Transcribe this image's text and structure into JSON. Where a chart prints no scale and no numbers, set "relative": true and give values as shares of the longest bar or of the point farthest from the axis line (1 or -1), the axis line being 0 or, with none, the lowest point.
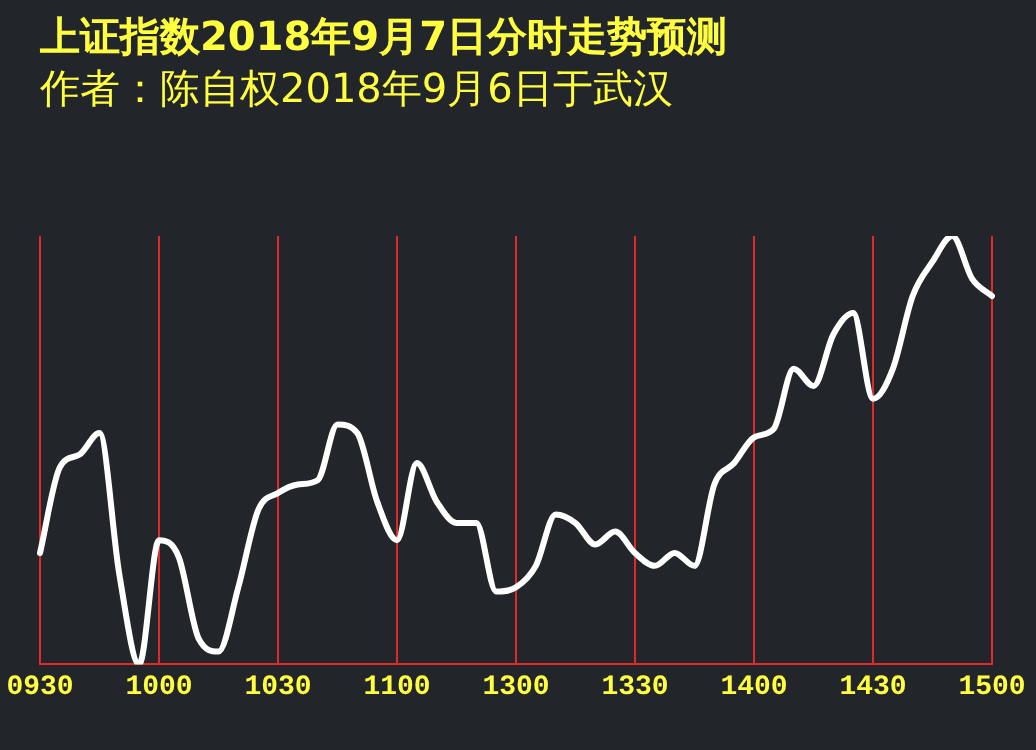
{
  "chart_data": {
    "type": "line",
    "title": "上证指数2018年9月7日分时走势预测",
    "subtitle": "作者：陈自权2018年9月6日于武汉",
    "relative": true,
    "categories": [
      "0930",
      null,
      null,
      null,
      null,
      null,
      "1000",
      null,
      null,
      null,
      null,
      null,
      "1030",
      null,
      null,
      null,
      null,
      null,
      "1100",
      null,
      null,
      null,
      null,
      null,
      "1300",
      null,
      null,
      null,
      null,
      null,
      "1330",
      null,
      null,
      null,
      null,
      null,
      "1400",
      null,
      null,
      null,
      null,
      null,
      "1430",
      null,
      null,
      null,
      null,
      null,
      "1500"
    ],
    "series": [
      {
        "color": "#ffffff",
        "values": [
          0.26,
          0.46,
          0.49,
          0.54,
          0.21,
          0,
          0.29,
          0.25,
          0.06,
          0.03,
          0.18,
          0.36,
          0.4,
          0.42,
          0.43,
          0.56,
          0.54,
          0.38,
          0.29,
          0.47,
          0.38,
          0.33,
          0.33,
          0.17,
          0.18,
          0.23,
          0.35,
          0.33,
          0.28,
          0.31,
          0.26,
          0.23,
          0.26,
          0.23,
          0.42,
          0.47,
          0.53,
          0.55,
          0.69,
          0.65,
          0.77,
          0.82,
          0.62,
          0.69,
          0.86,
          0.94,
          1,
          0.9,
          0.86
        ]
      }
    ],
    "grid": "x",
    "legend": false,
    "marker": "none",
    "line_style": "solid"
  }
}
